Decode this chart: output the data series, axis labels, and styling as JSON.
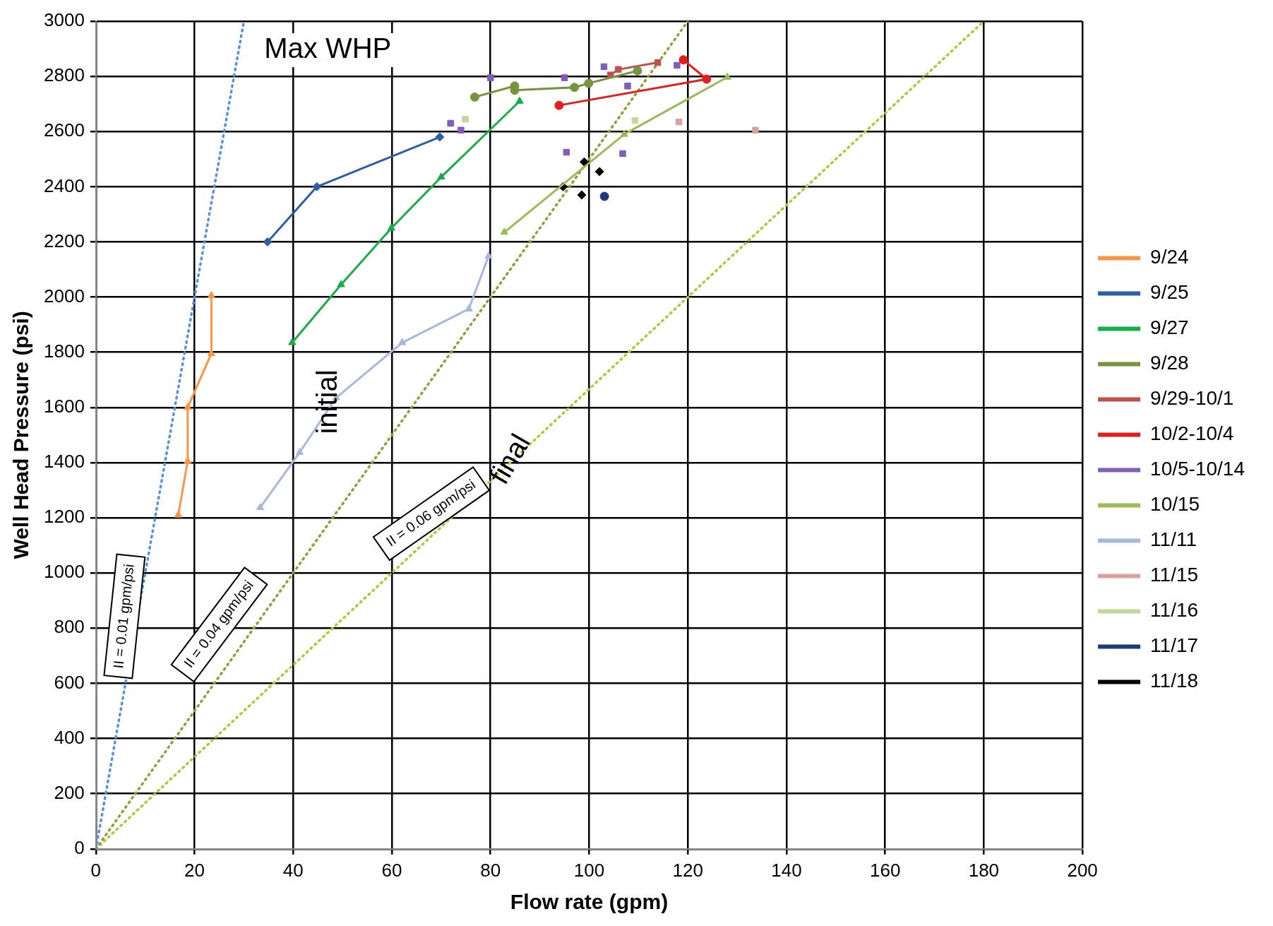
{
  "chart_data": {
    "type": "line",
    "xlabel": "Flow rate (gpm)",
    "ylabel": "Well Head Pressure (psi)",
    "xlim": [
      0,
      200
    ],
    "xticks": [
      0,
      20,
      40,
      60,
      80,
      100,
      120,
      140,
      160,
      180,
      200
    ],
    "ylim": [
      0,
      3000
    ],
    "yticks": [
      0,
      200,
      400,
      600,
      800,
      1000,
      1200,
      1400,
      1600,
      1800,
      2000,
      2200,
      2400,
      2600,
      2800,
      3000
    ],
    "grid": true,
    "legend": "right",
    "series": [
      {
        "name": "9/24",
        "type": "line",
        "marker": "triangle",
        "color": "#f79646",
        "x": [
          16.7,
          18.6,
          18.6,
          23.4,
          23.4
        ],
        "values": [
          1210,
          1405,
          1600,
          1795,
          2005
        ]
      },
      {
        "name": "9/25",
        "type": "line",
        "marker": "diamond",
        "color": "#2e5fa3",
        "x": [
          34.8,
          44.8,
          69.7
        ],
        "values": [
          2200,
          2400,
          2580
        ]
      },
      {
        "name": "9/27",
        "type": "line",
        "marker": "triangle",
        "color": "#1aab4a",
        "x": [
          39.8,
          49.7,
          59.9,
          70,
          85.9
        ],
        "values": [
          1835,
          2045,
          2250,
          2435,
          2710
        ]
      },
      {
        "name": "9/28",
        "type": "line",
        "marker": "circle",
        "color": "#77933c",
        "x": [
          76.8,
          84.9,
          84.9,
          97,
          99.9,
          109.8
        ],
        "values": [
          2725,
          2765,
          2750,
          2760,
          2775,
          2820
        ]
      },
      {
        "name": "9/29-10/1",
        "type": "line",
        "marker": "square",
        "color": "#c0504d",
        "x": [
          104.3,
          105.9,
          113.9
        ],
        "values": [
          2805,
          2825,
          2850
        ]
      },
      {
        "name": "10/2-10/4",
        "type": "line",
        "marker": "circle",
        "color": "#e0201f",
        "x": [
          93.9,
          123.8,
          119.1
        ],
        "values": [
          2695,
          2790,
          2860
        ]
      },
      {
        "name": "10/5-10/14",
        "type": "scatter",
        "marker": "square",
        "color": "#7f5fb5",
        "x": [
          71.9,
          74,
          80,
          95,
          103,
          107.8,
          117.8,
          95.4,
          106.8
        ],
        "values": [
          2630,
          2605,
          2795,
          2795,
          2835,
          2765,
          2840,
          2525,
          2520
        ]
      },
      {
        "name": "10/15",
        "type": "line",
        "marker": "triangle",
        "color": "#9bbb59",
        "x": [
          82.8,
          107.1,
          128
        ],
        "values": [
          2235,
          2590,
          2797
        ]
      },
      {
        "name": "11/11",
        "type": "line",
        "marker": "triangle",
        "color": "#a9b7db",
        "x": [
          33.3,
          41.3,
          48.7,
          62.1,
          75.6,
          79.6
        ],
        "values": [
          1237,
          1437,
          1635,
          1835,
          1957,
          2148
        ]
      },
      {
        "name": "11/15",
        "type": "scatter",
        "marker": "square",
        "color": "#d9a0a0",
        "x": [
          118.2,
          133.7
        ],
        "values": [
          2635,
          2605
        ]
      },
      {
        "name": "11/16",
        "type": "scatter",
        "marker": "square",
        "color": "#c4d79b",
        "x": [
          74.9,
          109.3
        ],
        "values": [
          2645,
          2640
        ]
      },
      {
        "name": "11/17",
        "type": "scatter",
        "marker": "circle",
        "color": "#1f3a7a",
        "x": [
          103.1
        ],
        "values": [
          2365
        ]
      },
      {
        "name": "11/18",
        "type": "scatter",
        "marker": "diamond",
        "color": "#000000",
        "x": [
          94.7,
          99,
          102.1,
          98.5
        ],
        "values": [
          2400,
          2490,
          2455,
          2370
        ]
      },
      {
        "type": "line",
        "marker": "none",
        "line_style": "dotted",
        "color": "#5b8fd6",
        "x": [
          0,
          30
        ],
        "values": [
          0,
          3000
        ]
      },
      {
        "type": "line",
        "marker": "none",
        "line_style": "dotted",
        "color": "#9a9a40",
        "x": [
          0,
          120
        ],
        "values": [
          0,
          3000
        ]
      },
      {
        "type": "line",
        "marker": "none",
        "line_style": "dotted",
        "color": "#a6cc3f",
        "x": [
          0,
          180
        ],
        "values": [
          0,
          3000
        ]
      }
    ],
    "annotations": [
      "Max WHP",
      {
        "text": "initial",
        "x": 47.2,
        "y": 1620
      },
      {
        "text": "final",
        "x": 84.2,
        "y": 1410
      },
      "II = 0.01 gpm/psi",
      "II = 0.04 gpm/psi",
      "II = 0.06 gpm/psi"
    ]
  }
}
